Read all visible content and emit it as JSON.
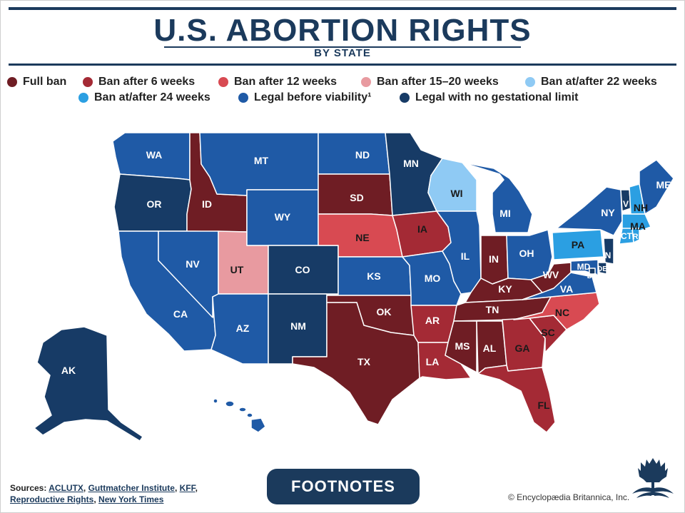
{
  "header": {
    "title": "U.S. ABORTION RIGHTS",
    "subtitle": "BY STATE"
  },
  "legend": [
    {
      "label": "Full ban",
      "color": "#6f1d24"
    },
    {
      "label": "Ban after 6 weeks",
      "color": "#a42a35"
    },
    {
      "label": "Ban after 12 weeks",
      "color": "#d84a52"
    },
    {
      "label": "Ban after 15–20 weeks",
      "color": "#e89aa0"
    },
    {
      "label": "Ban at/after 22 weeks",
      "color": "#8fcaf4"
    },
    {
      "label": "Ban at/after 24 weeks",
      "color": "#2b9fe2"
    },
    {
      "label": "Legal before viability¹",
      "color": "#1f5aa6"
    },
    {
      "label": "Legal with no gestational limit",
      "color": "#173b66"
    }
  ],
  "states": {
    "WA": "WA",
    "OR": "OR",
    "CA": "CA",
    "ID": "ID",
    "NV": "NV",
    "UT": "UT",
    "AZ": "AZ",
    "MT": "MT",
    "WY": "WY",
    "CO": "CO",
    "NM": "NM",
    "ND": "ND",
    "SD": "SD",
    "NE": "NE",
    "KS": "KS",
    "OK": "OK",
    "TX": "TX",
    "MN": "MN",
    "IA": "IA",
    "MO": "MO",
    "AR": "AR",
    "LA": "LA",
    "WI": "WI",
    "IL": "IL",
    "MI": "MI",
    "IN": "IN",
    "OH": "OH",
    "KY": "KY",
    "TN": "TN",
    "MS": "MS",
    "AL": "AL",
    "GA": "GA",
    "FL": "FL",
    "SC": "SC",
    "NC": "NC",
    "VA": "VA",
    "WV": "WV",
    "PA": "PA",
    "NY": "NY",
    "ME": "ME",
    "VT": "V",
    "NH": "NH",
    "MA": "MA",
    "CT": "CT",
    "RI": "RI",
    "NJ": "N",
    "MD": "MD",
    "DE": "DE",
    "DC": "DC",
    "AK": "AK"
  },
  "sources": {
    "prefix": "Sources:",
    "links": [
      "ACLUTX",
      "Guttmatcher Institute",
      "KFF",
      "Reproductive Rights",
      "New York Times"
    ]
  },
  "footnotes_button": "FOOTNOTES",
  "copyright": "© Encyclopædia Britannica, Inc.",
  "logo_icon": "thistle-icon"
}
